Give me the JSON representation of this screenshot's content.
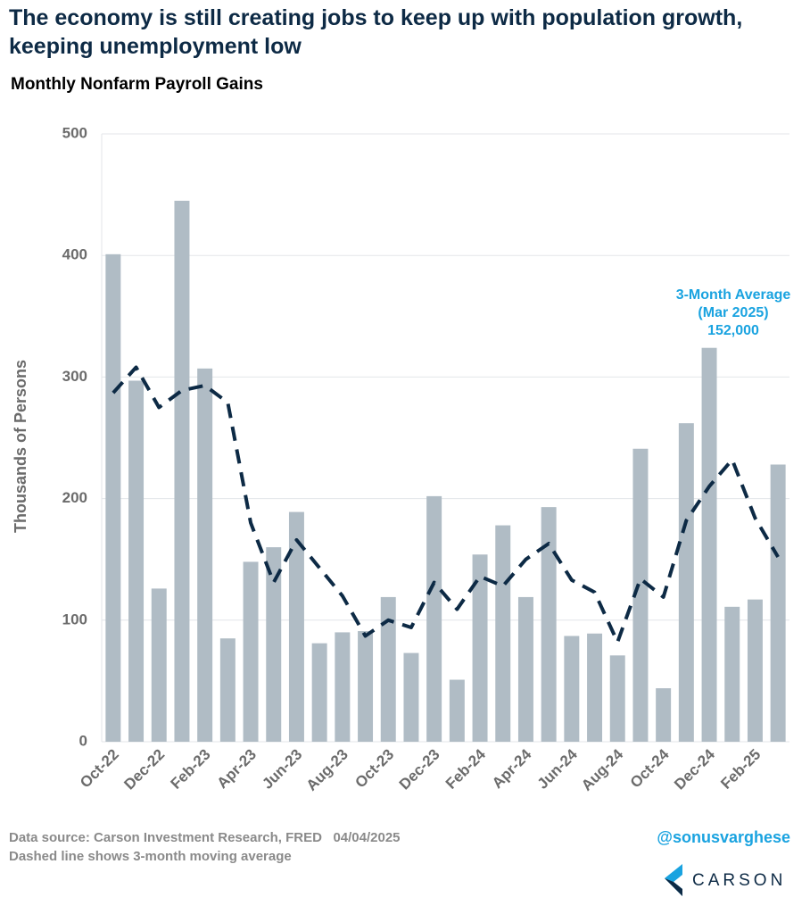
{
  "chart_data": {
    "type": "bar",
    "title": "The economy is still creating jobs to keep up with population growth, keeping unemployment low",
    "subtitle": "Monthly Nonfarm Payroll Gains",
    "y_label": "Thousands of Persons",
    "categories": [
      "Oct-22",
      null,
      "Dec-22",
      null,
      "Feb-23",
      null,
      "Apr-23",
      null,
      "Jun-23",
      null,
      "Aug-23",
      null,
      "Oct-23",
      null,
      "Dec-23",
      null,
      "Feb-24",
      null,
      "Apr-24",
      null,
      "Jun-24",
      null,
      "Aug-24",
      null,
      "Oct-24",
      null,
      "Dec-24",
      null,
      "Feb-25",
      null
    ],
    "series": [
      {
        "type": "bar",
        "color": "#b0bcc5",
        "values": [
          401,
          297,
          126,
          445,
          307,
          85,
          148,
          160,
          189,
          81,
          90,
          91,
          119,
          73,
          202,
          51,
          154,
          178,
          119,
          193,
          87,
          89,
          71,
          241,
          44,
          262,
          324,
          111,
          117,
          228
        ]
      },
      {
        "type": "line",
        "color": "#0d2a45",
        "dashed": true,
        "values": [
          287,
          308,
          275,
          289,
          293,
          279,
          180,
          131,
          166,
          143,
          120,
          87,
          100,
          94,
          131,
          109,
          136,
          128,
          150,
          163,
          133,
          123,
          82,
          134,
          119,
          182,
          210,
          232,
          184,
          152
        ]
      }
    ],
    "annotation": [
      "3-Month Average",
      "(Mar 2025)",
      "152,000"
    ],
    "annotation_color": "#1aa3e0",
    "ylim": [
      0,
      500
    ],
    "yticks": [
      0,
      100,
      200,
      300,
      400,
      500
    ],
    "grid": true
  },
  "footer": {
    "source": "Data source: Carson Investment Research, FRED   04/04/2025",
    "note": "Dashed line shows 3-month moving average",
    "handle": "@sonusvarghese",
    "logo": "CARSON"
  }
}
